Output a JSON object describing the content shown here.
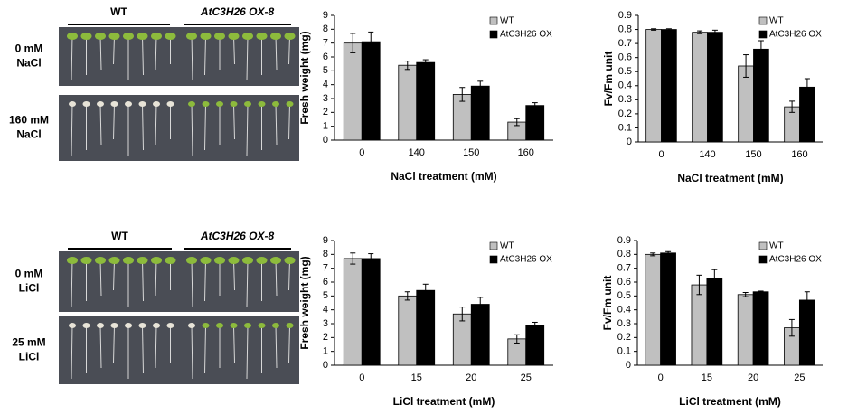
{
  "photo_panels": [
    {
      "header_left": "WT",
      "header_right": "AtC3H26 OX-8",
      "rows": [
        [
          "0 mM",
          "NaCl"
        ],
        [
          "160 mM",
          "NaCl"
        ]
      ]
    },
    {
      "header_left": "WT",
      "header_right": "AtC3H26 OX-8",
      "rows": [
        [
          "0 mM",
          "LiCl"
        ],
        [
          "25 mM",
          "LiCl"
        ]
      ]
    }
  ],
  "chart_data": [
    {
      "type": "bar",
      "xlabel": "NaCl treatment (mM)",
      "ylabel": "Fresh weight (mg)",
      "categories": [
        "0",
        "140",
        "150",
        "160"
      ],
      "series": [
        {
          "name": "WT",
          "color": "#c0c0c0",
          "values": [
            7.0,
            5.4,
            3.3,
            1.3
          ],
          "errors": [
            0.7,
            0.3,
            0.5,
            0.25
          ]
        },
        {
          "name": "AtC3H26 OX",
          "color": "#000000",
          "values": [
            7.1,
            5.6,
            3.9,
            2.5
          ],
          "errors": [
            0.7,
            0.2,
            0.35,
            0.2
          ]
        }
      ],
      "ylim": [
        0,
        9
      ],
      "yticks": [
        0,
        1,
        2,
        3,
        4,
        5,
        6,
        7,
        8,
        9
      ],
      "legend": "upper right"
    },
    {
      "type": "bar",
      "xlabel": "NaCl treatment (mM)",
      "ylabel": "Fv/Fm unit",
      "categories": [
        "0",
        "140",
        "150",
        "160"
      ],
      "series": [
        {
          "name": "WT",
          "color": "#c0c0c0",
          "values": [
            0.8,
            0.78,
            0.54,
            0.25
          ],
          "errors": [
            0.005,
            0.01,
            0.08,
            0.04
          ]
        },
        {
          "name": "AtC3H26 OX",
          "color": "#000000",
          "values": [
            0.8,
            0.78,
            0.66,
            0.39
          ],
          "errors": [
            0.005,
            0.015,
            0.06,
            0.06
          ]
        }
      ],
      "ylim": [
        0,
        0.9
      ],
      "yticks": [
        0,
        0.1,
        0.2,
        0.3,
        0.4,
        0.5,
        0.6,
        0.7,
        0.8,
        0.9
      ],
      "legend": "upper right"
    },
    {
      "type": "bar",
      "xlabel": "LiCl treatment (mM)",
      "ylabel": "Fresh weight (mg)",
      "categories": [
        "0",
        "15",
        "20",
        "25"
      ],
      "series": [
        {
          "name": "WT",
          "color": "#c0c0c0",
          "values": [
            7.7,
            5.0,
            3.7,
            1.9
          ],
          "errors": [
            0.4,
            0.3,
            0.5,
            0.3
          ]
        },
        {
          "name": "AtC3H26 OX",
          "color": "#000000",
          "values": [
            7.7,
            5.4,
            4.4,
            2.9
          ],
          "errors": [
            0.35,
            0.45,
            0.5,
            0.2
          ]
        }
      ],
      "ylim": [
        0,
        9
      ],
      "yticks": [
        0,
        1,
        2,
        3,
        4,
        5,
        6,
        7,
        8,
        9
      ],
      "legend": "upper right"
    },
    {
      "type": "bar",
      "xlabel": "LiCl treatment (mM)",
      "ylabel": "Fv/Fm unit",
      "categories": [
        "0",
        "15",
        "20",
        "25"
      ],
      "series": [
        {
          "name": "WT",
          "color": "#c0c0c0",
          "values": [
            0.8,
            0.58,
            0.51,
            0.27
          ],
          "errors": [
            0.01,
            0.07,
            0.015,
            0.06
          ]
        },
        {
          "name": "AtC3H26 OX",
          "color": "#000000",
          "values": [
            0.81,
            0.63,
            0.53,
            0.47
          ],
          "errors": [
            0.01,
            0.06,
            0.005,
            0.06
          ]
        }
      ],
      "ylim": [
        0,
        0.9
      ],
      "yticks": [
        0,
        0.1,
        0.2,
        0.3,
        0.4,
        0.5,
        0.6,
        0.7,
        0.8,
        0.9
      ],
      "legend": "upper right"
    }
  ]
}
